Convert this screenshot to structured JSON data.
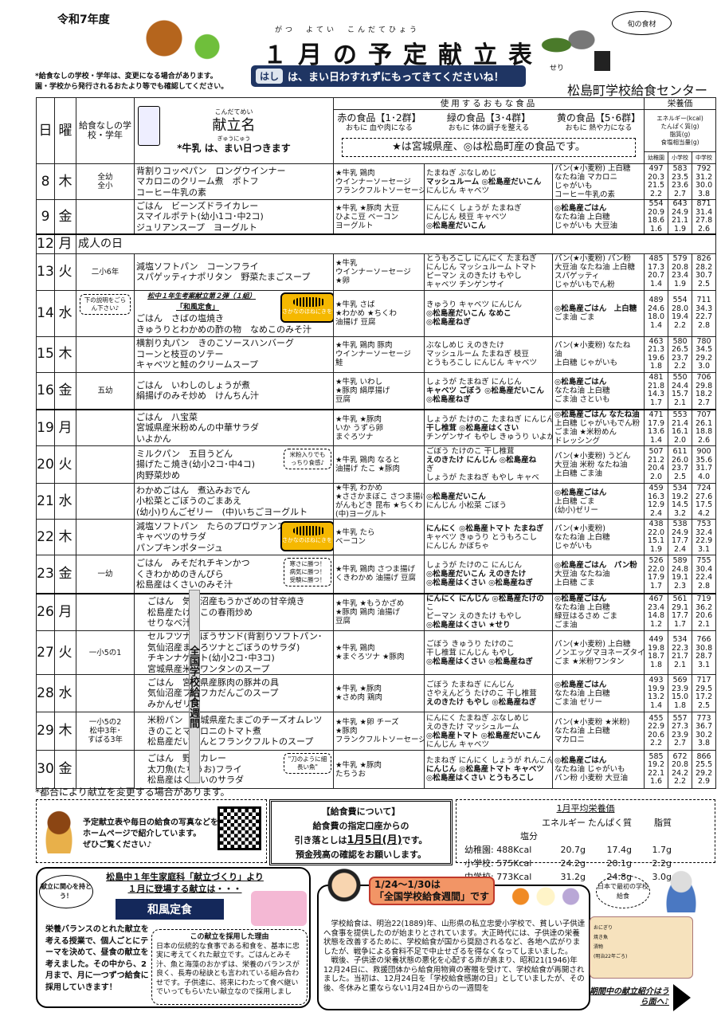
{
  "header": {
    "year": "令和7年度",
    "title": "１月の予定献立表",
    "ruby": "がつ　よてい　こんだてひょう",
    "note1": "*給食なしの学校・学年は、変更になる場合があります。",
    "note2": "園・学校から発行されるおたより等でも確認してください。",
    "hashi_tag": "はし",
    "hashi_text": "は、まい日わすれずにもってきてくださいね！",
    "center": "松島町学校給食センター",
    "season_label": "旬の食材",
    "seri": "せり"
  },
  "table_header": {
    "day": "日",
    "dow": "曜",
    "school": "給食なしの学校・学年",
    "menu_ruby": "こんだてめい",
    "menu": "献立名",
    "milk_ruby": "ぎゅうにゅう",
    "milk": "*牛乳 は、まい日つきます",
    "foods": "使用するおもな食品",
    "red": "赤の食品【1･2群】",
    "red_sub": "おもに 血や肉になる",
    "green": "緑の食品【3･4群】",
    "green_sub": "おもに 体の調子を整える",
    "yellow": "黄の食品【5･6群】",
    "yellow_sub": "おもに 熱や力になる",
    "legend": "★は宮城県産、◎は松島町産の食品です。",
    "nutrition": "栄養価",
    "nut_labels": [
      "エネルギー(kcal)",
      "たんぱく質(g)",
      "脂質(g)",
      "食塩相当量(g)"
    ],
    "levels": [
      "幼稚園",
      "小学校",
      "中学校"
    ]
  },
  "rows": [
    {
      "day": "8",
      "dow": "木",
      "school": "全幼\n全小",
      "menu": [
        "背割りコッペパン　ロングウインナー",
        "マカロニのクリーム煮　ポトフ",
        "コーヒー牛乳の素"
      ],
      "red": [
        "★牛乳 鶏肉",
        "ウインナーソーセージ",
        "フランクフルトソーセージ"
      ],
      "green": [
        "たまねぎ ぶなしめじ",
        "マッシュルーム ◎松島産だいこん",
        "にんじん キャベツ"
      ],
      "yellow": [
        "パン(★小麦粉) 上白糖",
        "なたね油 マカロニ",
        "じゃがいも",
        "コーヒー牛乳の素"
      ],
      "nut": [
        [
          "497",
          "583",
          "792"
        ],
        [
          "20.3",
          "23.5",
          "31.2"
        ],
        [
          "21.5",
          "23.6",
          "30.0"
        ],
        [
          "2.2",
          "2.7",
          "3.8"
        ]
      ]
    },
    {
      "day": "9",
      "dow": "金",
      "school": "",
      "menu": [
        "ごはん　ビーンズドライカレー",
        "スマイルポテト(幼小1コ･中2コ)",
        "ジュリアンスープ　ヨーグルト"
      ],
      "red": [
        "★牛乳 ★豚肉 大豆",
        "ひよこ豆 ベーコン",
        "ヨーグルト"
      ],
      "green": [
        "にんにく しょうが たまねぎ",
        "にんじん 枝豆 キャベツ",
        "◎松島産だいこん"
      ],
      "yellow": [
        "◎松島産ごはん",
        "なたね油 上白糖",
        "じゃがいも 大豆油"
      ],
      "nut": [
        [
          "554",
          "643",
          "871"
        ],
        [
          "20.9",
          "24.9",
          "31.4"
        ],
        [
          "18.6",
          "21.1",
          "27.8"
        ],
        [
          "1.6",
          "1.9",
          "2.6"
        ]
      ],
      "thick": true
    },
    {
      "day": "12",
      "dow": "月",
      "holiday": "成人の日"
    },
    {
      "day": "13",
      "dow": "火",
      "school": "二小6年",
      "menu": [
        "減塩ソフトパン　コーンフライ",
        "スパゲッティナポリタン　野菜たまごスープ"
      ],
      "red": [
        "★牛乳",
        "ウインナーソーセージ",
        "★卵"
      ],
      "green": [
        "とうもろこし にんにく たまねぎ",
        "にんじん マッシュルーム トマト",
        "ピーマン えのきたけ もやし",
        "キャベツ チンゲンサイ"
      ],
      "yellow": [
        "パン(★小麦粉) パン粉",
        "大豆油 なたね油 上白糖",
        "スパゲッティ",
        "じゃがいもでん粉"
      ],
      "nut": [
        [
          "485",
          "579",
          "826"
        ],
        [
          "17.3",
          "20.8",
          "28.2"
        ],
        [
          "20.7",
          "23.4",
          "30.7"
        ],
        [
          "1.4",
          "1.9",
          "2.5"
        ]
      ]
    },
    {
      "day": "14",
      "dow": "水",
      "school": "",
      "callout_school": "下の説明をごらん下さい♪",
      "menu_head": "松中１年生考案献立第２弾（１組）",
      "menu_sub": "「和風定食」",
      "menu": [
        "ごはん　さばの塩焼き",
        "きゅうりとわかめの酢の物　なめこのみそ汁"
      ],
      "fish": "さかなのほねにきをつけてたべよう",
      "red": [
        "★牛乳 さば",
        "★わかめ ★ちくわ",
        "油揚げ 豆腐"
      ],
      "green": [
        "きゅうり キャベツ にんじん",
        "◎松島産だいこん なめこ",
        "◎松島産ねぎ"
      ],
      "yellow": [
        "◎松島産ごはん　上白糖",
        "ごま油 ごま"
      ],
      "nut": [
        [
          "489",
          "554",
          "711"
        ],
        [
          "24.6",
          "28.0",
          "34.3"
        ],
        [
          "18.0",
          "19.4",
          "22.7"
        ],
        [
          "1.4",
          "2.2",
          "2.8"
        ]
      ]
    },
    {
      "day": "15",
      "dow": "木",
      "school": "",
      "menu": [
        "横割り丸パン　きのこソースハンバーグ",
        "コーンと枝豆のソテー",
        "キャベツと鮭のクリームスープ"
      ],
      "red": [
        "★牛乳 鶏肉 豚肉",
        "ウインナーソーセージ",
        "鮭"
      ],
      "green": [
        "ぶなしめじ えのきたけ",
        "マッシュルーム たまねぎ 枝豆",
        "とうもろこし にんじん キャベツ"
      ],
      "yellow": [
        "パン(★小麦粉) なたね",
        "油",
        "上白糖 じゃがいも"
      ],
      "nut": [
        [
          "463",
          "580",
          "780"
        ],
        [
          "21.3",
          "26.5",
          "34.5"
        ],
        [
          "19.6",
          "23.7",
          "29.2"
        ],
        [
          "1.8",
          "2.2",
          "3.0"
        ]
      ]
    },
    {
      "day": "16",
      "dow": "金",
      "school": "五幼",
      "menu": [
        "ごはん　いわしのしょうが煮",
        "絹揚げのみそ炒め　けんちん汁"
      ],
      "red": [
        "★牛乳 いわし",
        "★豚肉 絹厚揚げ",
        "豆腐"
      ],
      "green": [
        "しょうが たまねぎ にんじん",
        "キャベツ ごぼう ◎松島産だいこん",
        "◎松島産ねぎ"
      ],
      "yellow": [
        "◎松島産ごはん",
        "なたね油 上白糖",
        "ごま油 さといも"
      ],
      "nut": [
        [
          "481",
          "550",
          "706"
        ],
        [
          "21.8",
          "24.4",
          "29.8"
        ],
        [
          "14.3",
          "15.7",
          "18.2"
        ],
        [
          "1.7",
          "2.1",
          "2.7"
        ]
      ],
      "thick": true
    },
    {
      "day": "19",
      "dow": "月",
      "school": "",
      "menu": [
        "ごはん　八宝菜",
        "宮城県産米粉めんの中華サラダ",
        "いよかん"
      ],
      "red": [
        "★牛乳 ★豚肉",
        "いか うずら卵",
        "まぐろツナ"
      ],
      "green": [
        "しょうが たけのこ たまねぎ にんじん",
        "干し椎茸 ◎松島産はくさい",
        "チンゲンサイ もやし きゅうり いよかん"
      ],
      "yellow": [
        "◎松島産ごはん なたね油",
        "上白糖 じゃがいもでん粉",
        "ごま油 ★米粉めん",
        "ドレッシング"
      ],
      "nut": [
        [
          "471",
          "553",
          "707"
        ],
        [
          "17.9",
          "21.4",
          "26.1"
        ],
        [
          "13.6",
          "16.1",
          "18.8"
        ],
        [
          "1.4",
          "2.0",
          "2.6"
        ]
      ]
    },
    {
      "day": "20",
      "dow": "火",
      "school": "",
      "menu": [
        "ミルクパン　五目うどん",
        "揚げたこ焼き(幼小2コ･中4コ)",
        "肉野菜炒め"
      ],
      "callout": "米粉入りでもっちり食感♪",
      "red": [
        "★牛乳 鶏肉 なると",
        "油揚げ たこ ★豚肉"
      ],
      "green": [
        "ごぼう たけのこ 干し椎茸",
        "えのきたけ にんじん ◎松島産ね",
        "ぎ",
        "しょうが たまねぎ もやし キャベ"
      ],
      "yellow": [
        "パン(★小麦粉) うどん",
        "大豆油 米粉 なたね油",
        "上白糖 ごま油"
      ],
      "nut": [
        [
          "507",
          "611",
          "900"
        ],
        [
          "21.2",
          "26.0",
          "35.6"
        ],
        [
          "20.4",
          "23.7",
          "31.7"
        ],
        [
          "2.0",
          "2.5",
          "4.0"
        ]
      ]
    },
    {
      "day": "21",
      "dow": "水",
      "school": "",
      "menu": [
        "わかめごはん　煮込みおでん",
        "小松菜とごぼうのごまあえ",
        "(幼小)りんごゼリー　(中)いちごヨーグルト"
      ],
      "red": [
        "★牛乳 わかめ",
        "★ささかまぼこ さつま揚げ",
        "がんもどき 昆布 ★ちくわ",
        "(中)ヨーグルト"
      ],
      "green": [
        "◎松島産だいこん",
        "にんじん 小松菜 ごぼう"
      ],
      "yellow": [
        "◎松島産ごはん",
        "上白糖 ごま",
        "(幼小)ゼリー"
      ],
      "nut": [
        [
          "459",
          "534",
          "724"
        ],
        [
          "16.3",
          "19.2",
          "27.6"
        ],
        [
          "12.9",
          "14.5",
          "17.5"
        ],
        [
          "2.4",
          "3.2",
          "4.2"
        ]
      ]
    },
    {
      "day": "22",
      "dow": "木",
      "school": "",
      "menu": [
        "減塩ソフトパン　たらのプロヴァンス風",
        "キャベツのサラダ",
        "パンプキンポタージュ"
      ],
      "fish": "さかなのほねにきをつけてたべよう",
      "red": [
        "★牛乳 たら",
        "ベーコン"
      ],
      "green": [
        "にんにく ◎松島産トマト たまねぎ",
        "キャベツ きゅうり とうもろこし",
        "にんじん かぼちゃ"
      ],
      "yellow": [
        "パン(★小麦粉)",
        "なたね油 上白糖",
        "じゃがいも"
      ],
      "nut": [
        [
          "438",
          "538",
          "753"
        ],
        [
          "22.0",
          "24.9",
          "32.4"
        ],
        [
          "15.1",
          "17.7",
          "22.9"
        ],
        [
          "1.9",
          "2.4",
          "3.1"
        ]
      ]
    },
    {
      "day": "23",
      "dow": "金",
      "school": "一幼",
      "menu": [
        "ごはん　みそだれチキンかつ",
        "くきわかめのきんぴら",
        "松島産はくさいのみそ汁"
      ],
      "callout": "寒さに勝つ！病気に勝つ！受験に勝つ！",
      "red": [
        "★牛乳 鶏肉 さつま揚げ",
        "くきわかめ 油揚げ 豆腐"
      ],
      "green": [
        "しょうが たけのこ にんじん",
        "◎松島産だいこん えのきたけ",
        "◎松島産はくさい ◎松島産ねぎ"
      ],
      "yellow": [
        "◎松島産ごはん　パン粉",
        "大豆油 なたね油",
        "上白糖 ごま"
      ],
      "nut": [
        [
          "526",
          "589",
          "755"
        ],
        [
          "22.0",
          "24.8",
          "30.4"
        ],
        [
          "17.9",
          "19.1",
          "22.4"
        ],
        [
          "1.7",
          "2.3",
          "2.8"
        ]
      ],
      "thick": true
    },
    {
      "day": "26",
      "dow": "月",
      "school": "",
      "menu": [
        "ごはん　気仙沼産もうかざめの甘辛焼き",
        "松島産たけのこの春雨炒め",
        "せりなべ汁"
      ],
      "red": [
        "★牛乳 ★もうかざめ",
        "★豚肉 鶏肉 油揚げ",
        "豆腐"
      ],
      "green": [
        "にんにく にんじん ◎松島産たけの",
        "こ",
        "ピーマン えのきたけ もやし",
        "◎松島産はくさい ★せり"
      ],
      "yellow": [
        "◎松島産ごはん",
        "なたね油 上白糖",
        "緑豆はるさめ ごま",
        "ごま油"
      ],
      "nut": [
        [
          "467",
          "561",
          "719"
        ],
        [
          "23.4",
          "29.1",
          "36.2"
        ],
        [
          "14.8",
          "17.7",
          "20.6"
        ],
        [
          "1.2",
          "1.7",
          "2.1"
        ]
      ]
    },
    {
      "day": "27",
      "dow": "火",
      "school": "一小5の1",
      "menu": [
        "セルフツナごぼうサンド(背割りソフトパン･",
        "気仙沼産まぐろツナとごぼうのサラダ)",
        "チキンナゲット(幼小2コ･中3コ)",
        "宮城県産米粉ワンタンのスープ"
      ],
      "red": [
        "★牛乳 鶏肉",
        "★まぐろツナ ★豚肉"
      ],
      "green": [
        "ごぼう きゅうり たけのこ",
        "干し椎茸 にんじん もやし",
        "◎松島産はくさい ◎松島産ねぎ"
      ],
      "yellow": [
        "パン(★小麦粉) 上白糖",
        "ノンエッグマヨネーズタイプ",
        "ごま ★米粉ワンタン"
      ],
      "nut": [
        [
          "449",
          "534",
          "766"
        ],
        [
          "19.8",
          "22.3",
          "30.8"
        ],
        [
          "18.7",
          "21.7",
          "28.7"
        ],
        [
          "1.8",
          "2.1",
          "3.1"
        ]
      ]
    },
    {
      "day": "28",
      "dow": "水",
      "school": "",
      "menu": [
        "ごはん　宮城県産豚肉の豚丼の具",
        "気仙沼産フカフカだんごのスープ",
        "みかんゼリー"
      ],
      "red": [
        "★牛乳 ★豚肉",
        "★さめ肉 鶏肉"
      ],
      "green": [
        "ごぼう たまねぎ にんじん",
        "さやえんどう たけのこ 干し椎茸",
        "えのきたけ もやし ◎松島産ねぎ"
      ],
      "yellow": [
        "◎松島産ごはん",
        "なたね油 上白糖",
        "ごま油 ゼリー"
      ],
      "nut": [
        [
          "493",
          "569",
          "717"
        ],
        [
          "19.9",
          "23.9",
          "29.5"
        ],
        [
          "13.2",
          "15.0",
          "17.2"
        ],
        [
          "1.4",
          "1.8",
          "2.5"
        ]
      ]
    },
    {
      "day": "29",
      "dow": "木",
      "school": "一小5の2\n松中3年･\nすばる3年",
      "menu": [
        "米粉パン　宮城県産たまごのチーズオムレツ",
        "きのことマカロニのトマト煮",
        "松島産だいこんとフランクフルトのスープ"
      ],
      "red": [
        "★牛乳 ★卵 チーズ",
        "★豚肉",
        "フランクフルトソーセージ"
      ],
      "green": [
        "にんにく たまねぎ ぶなしめじ",
        "えのきたけ マッシュルーム",
        "◎松島産トマト ◎松島産だいこん",
        "にんじん キャベツ"
      ],
      "yellow": [
        "パン(★小麦粉 ★米粉)",
        "なたね油 上白糖",
        "マカロニ"
      ],
      "nut": [
        [
          "455",
          "557",
          "773"
        ],
        [
          "22.9",
          "27.3",
          "36.7"
        ],
        [
          "20.6",
          "23.9",
          "30.2"
        ],
        [
          "2.2",
          "2.7",
          "3.8"
        ]
      ]
    },
    {
      "day": "30",
      "dow": "金",
      "school": "",
      "menu": [
        "ごはん　野菜カレー",
        "太刀魚(たちうお)フライ",
        "松島産はくさいのサラダ"
      ],
      "callout": "\"刀のように細長い魚\"",
      "red": [
        "★牛乳 ★豚肉",
        "たちうお"
      ],
      "green": [
        "たまねぎ にんにく しょうが れんこん",
        "にんじん ◎松島産トマト キャベツ",
        "◎松島産はくさい とうもろこし"
      ],
      "yellow": [
        "◎松島産ごはん",
        "なたね油 じゃがいも",
        "パン粉 小麦粉 大豆油"
      ],
      "nut": [
        [
          "585",
          "672",
          "866"
        ],
        [
          "19.2",
          "20.8",
          "25.5"
        ],
        [
          "22.1",
          "24.2",
          "29.2"
        ],
        [
          "1.6",
          "2.2",
          "2.9"
        ]
      ]
    }
  ],
  "week_vertical": "全国学校給食週間",
  "note_bottom": "*都合により献立を変更する場合があります。",
  "homepage": {
    "line1": "予定献立表や毎日の給食の写真などを",
    "line2": "ホームページで紹介しています。",
    "line3": "ぜひご覧ください♪"
  },
  "fee": {
    "title": "【給食費について】",
    "line1": "給食費の指定口座からの",
    "line2a": "引き落としは",
    "date": "1月5日(月)",
    "line2b": "です。",
    "line3": "預金残高の確認をお願いします。"
  },
  "average": {
    "title": "1月平均栄養価",
    "headers": [
      "",
      "エネルギー",
      "たんぱく質",
      "脂質",
      "塩分"
    ],
    "rows": [
      [
        "幼稚園: 488Kcal",
        "20.7g",
        "17.4g",
        "1.7g"
      ],
      [
        "小学校: 575Kcal",
        "24.2g",
        "20.1g",
        "2.2g"
      ],
      [
        "中学校: 773Kcal",
        "31.2g",
        "24.8g",
        "3.0g"
      ]
    ]
  },
  "wafu": {
    "head1": "松島中１年生家庭科「献立づくり」より",
    "head2": "１月に登場する献立は・・・",
    "bubble": "献立に関心を持とう！",
    "title": "和風定食",
    "left": "栄養バランスのとれた献立を考える授業で、個人ごとにテーマを決めて、昼食の献立を考えました。その中から、2月まで、月に一つずつ給食に採用していきます！",
    "reason_title": "この献立を採用した理由",
    "reason": "日本の伝統的な食事である和食を、基本に忠実に考えてくれた献立です。ごはんとみそ汁、魚と海藻のおかずは、栄養のバランスが良く、長寿の秘訣とも言われている組み合わせです。子供達に、将来にわたって食べ継いでいってもらいたい献立なので採用しまし"
  },
  "week": {
    "tag1": "1/24～1/30は",
    "tag2": "「全国学校給食週間」です",
    "p1": "学校給食は、明治22(1889)年、山形県の私立忠愛小学校で、貧しい子供達へ食事を提供したのが始まりとされています。大正時代には、子供達の栄養状態を改善するために、学校給食が国から奨励されるなど、各地へ広がりましたが、戦争による食料不足で中止せざるを得なくなってしまいました。",
    "p2": "戦後、子供達の栄養状態の悪化を心配する声が高まり、昭和21(1946)年12月24日に、救援団体から給食用物資の寄贈を受けて、学校給食が再開されました。当初は、12月24日を「学校給食感謝の日」としていましたが、その後、冬休みと重ならない1月24日からの一週間を"
  },
  "first": {
    "cloud": "日本で最初の学校給食",
    "items": [
      "おにぎり",
      "焼き魚",
      "漬物",
      "(明治22年ごろ)"
    ],
    "link": "期間中の献立紹介はうら面へ♪"
  },
  "colors": {
    "navy": "#1f3563",
    "fish_badge": "#f5b800",
    "week_tag": "#f29566"
  }
}
